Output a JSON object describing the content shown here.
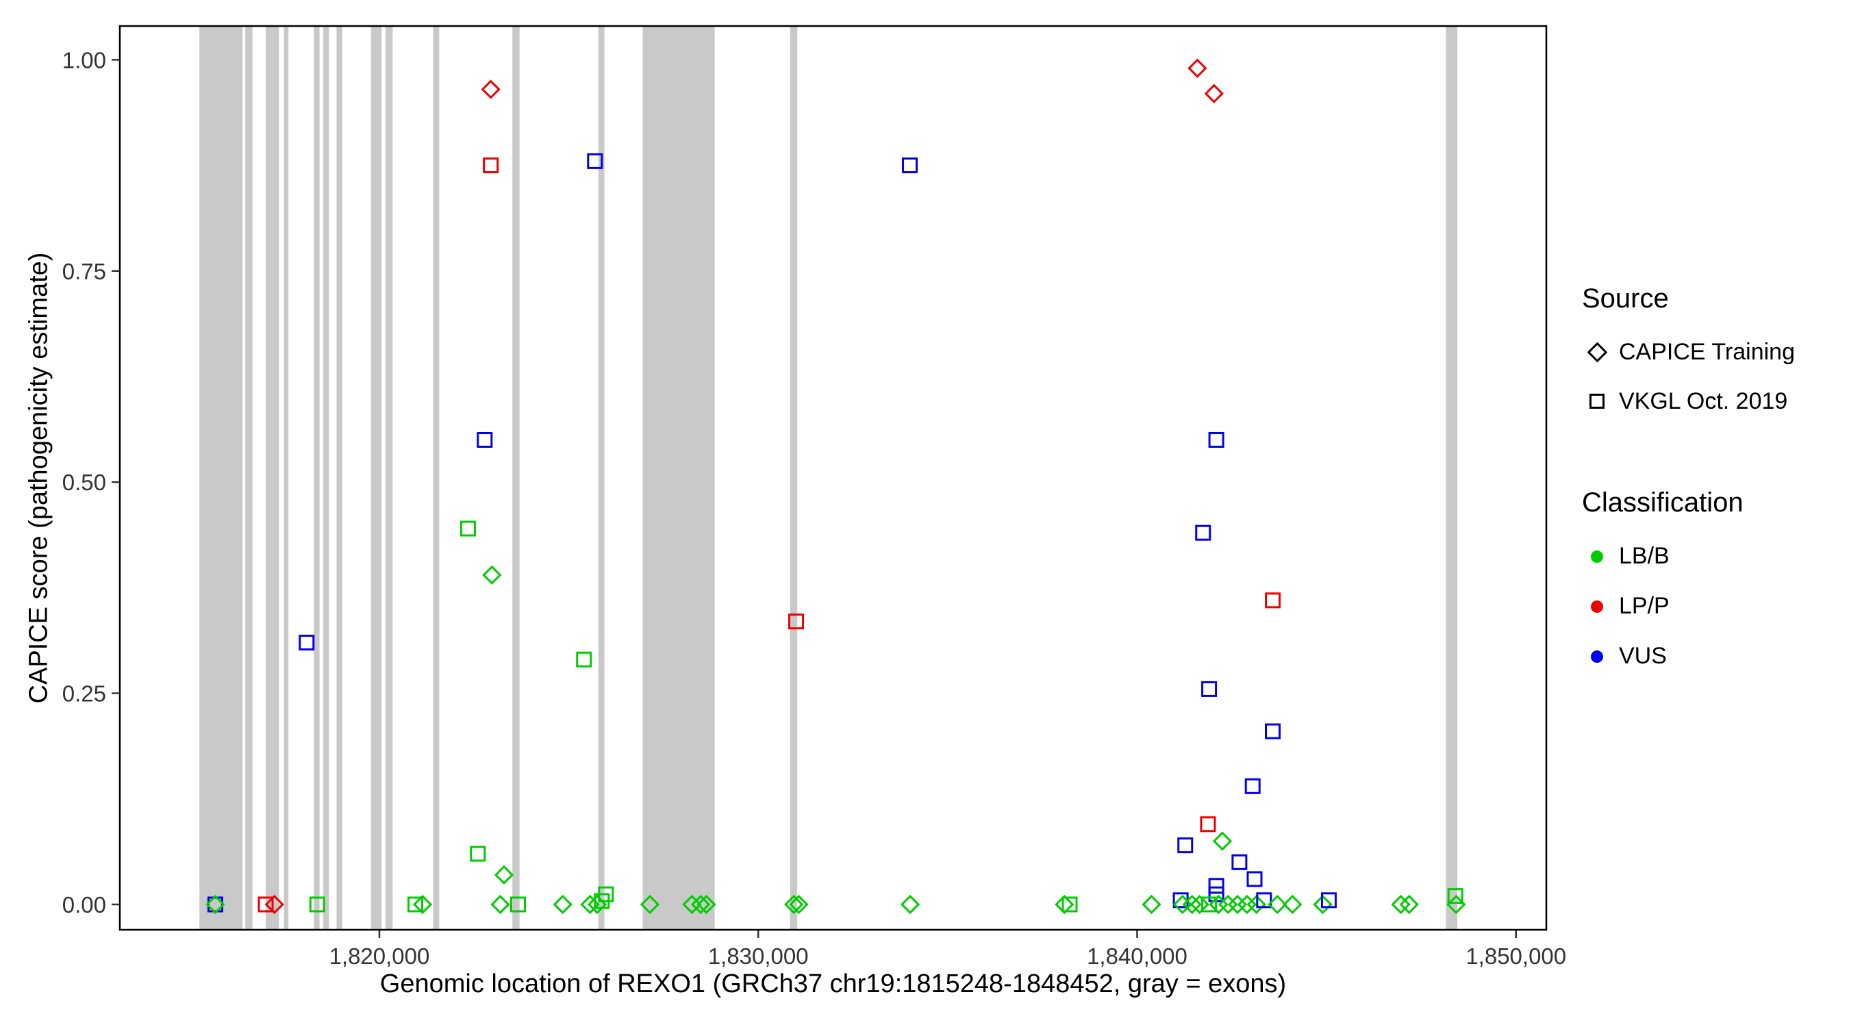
{
  "colors": {
    "LB/B": "#00CC00",
    "LP/P": "#EE0000",
    "VUS": "#0000EE",
    "exon": "#C9C9C9",
    "axis": "#333333",
    "panel_border": "#000000"
  },
  "legend": {
    "source": {
      "title": "Source",
      "items": [
        {
          "label": "CAPICE Training",
          "symbol": "diamond"
        },
        {
          "label": "VKGL Oct. 2019",
          "symbol": "square"
        }
      ]
    },
    "classification": {
      "title": "Classification",
      "items": [
        {
          "label": "LB/B",
          "color_key": "LB/B"
        },
        {
          "label": "LP/P",
          "color_key": "LP/P"
        },
        {
          "label": "VUS",
          "color_key": "VUS"
        }
      ]
    }
  },
  "chart_data": {
    "type": "scatter",
    "title": "",
    "xlabel": "Genomic location of REXO1 (GRCh37 chr19:1815248-1848452, gray = exons)",
    "ylabel": "CAPICE score (pathogenicity estimate)",
    "xlim": [
      1813150,
      1850800
    ],
    "ylim": [
      -0.03,
      1.04
    ],
    "grid": false,
    "legend_position": "right",
    "x_ticks": [
      {
        "value": 1820000,
        "label": "1,820,000"
      },
      {
        "value": 1830000,
        "label": "1,830,000"
      },
      {
        "value": 1840000,
        "label": "1,840,000"
      },
      {
        "value": 1850000,
        "label": "1,850,000"
      }
    ],
    "y_ticks": [
      {
        "value": 0.0,
        "label": "0.00"
      },
      {
        "value": 0.25,
        "label": "0.25"
      },
      {
        "value": 0.5,
        "label": "0.50"
      },
      {
        "value": 0.75,
        "label": "0.75"
      },
      {
        "value": 1.0,
        "label": "1.00"
      }
    ],
    "exons": [
      [
        1815250,
        1816390
      ],
      [
        1816460,
        1816650
      ],
      [
        1817000,
        1817350
      ],
      [
        1817480,
        1817600
      ],
      [
        1818270,
        1818420
      ],
      [
        1818520,
        1818670
      ],
      [
        1818870,
        1819020
      ],
      [
        1819780,
        1820060
      ],
      [
        1820160,
        1820350
      ],
      [
        1821420,
        1821580
      ],
      [
        1823510,
        1823700
      ],
      [
        1825780,
        1825940
      ],
      [
        1826950,
        1828850
      ],
      [
        1830840,
        1831030
      ],
      [
        1848150,
        1848452
      ]
    ],
    "points": [
      {
        "x": 1822940,
        "y": 0.965,
        "source": "training",
        "cls": "LP/P"
      },
      {
        "x": 1841590,
        "y": 0.99,
        "source": "training",
        "cls": "LP/P"
      },
      {
        "x": 1842030,
        "y": 0.96,
        "source": "training",
        "cls": "LP/P"
      },
      {
        "x": 1822940,
        "y": 0.875,
        "source": "vkgl",
        "cls": "LP/P"
      },
      {
        "x": 1825690,
        "y": 0.88,
        "source": "vkgl",
        "cls": "VUS"
      },
      {
        "x": 1834000,
        "y": 0.875,
        "source": "vkgl",
        "cls": "VUS"
      },
      {
        "x": 1822780,
        "y": 0.55,
        "source": "vkgl",
        "cls": "VUS"
      },
      {
        "x": 1842090,
        "y": 0.55,
        "source": "vkgl",
        "cls": "VUS"
      },
      {
        "x": 1822340,
        "y": 0.445,
        "source": "vkgl",
        "cls": "LB/B"
      },
      {
        "x": 1841740,
        "y": 0.44,
        "source": "vkgl",
        "cls": "VUS"
      },
      {
        "x": 1822970,
        "y": 0.39,
        "source": "training",
        "cls": "LB/B"
      },
      {
        "x": 1843580,
        "y": 0.36,
        "source": "vkgl",
        "cls": "LP/P"
      },
      {
        "x": 1831000,
        "y": 0.335,
        "source": "vkgl",
        "cls": "LP/P"
      },
      {
        "x": 1818080,
        "y": 0.31,
        "source": "vkgl",
        "cls": "VUS"
      },
      {
        "x": 1825400,
        "y": 0.29,
        "source": "vkgl",
        "cls": "LB/B"
      },
      {
        "x": 1841900,
        "y": 0.255,
        "source": "vkgl",
        "cls": "VUS"
      },
      {
        "x": 1843580,
        "y": 0.205,
        "source": "vkgl",
        "cls": "VUS"
      },
      {
        "x": 1843050,
        "y": 0.14,
        "source": "vkgl",
        "cls": "VUS"
      },
      {
        "x": 1841870,
        "y": 0.095,
        "source": "vkgl",
        "cls": "LP/P"
      },
      {
        "x": 1842250,
        "y": 0.075,
        "source": "training",
        "cls": "LB/B"
      },
      {
        "x": 1841270,
        "y": 0.07,
        "source": "vkgl",
        "cls": "VUS"
      },
      {
        "x": 1822600,
        "y": 0.06,
        "source": "vkgl",
        "cls": "LB/B"
      },
      {
        "x": 1842700,
        "y": 0.05,
        "source": "vkgl",
        "cls": "VUS"
      },
      {
        "x": 1823290,
        "y": 0.035,
        "source": "training",
        "cls": "LB/B"
      },
      {
        "x": 1843100,
        "y": 0.03,
        "source": "vkgl",
        "cls": "VUS"
      },
      {
        "x": 1842090,
        "y": 0.022,
        "source": "vkgl",
        "cls": "VUS"
      },
      {
        "x": 1842090,
        "y": 0.012,
        "source": "vkgl",
        "cls": "VUS"
      },
      {
        "x": 1825980,
        "y": 0.012,
        "source": "vkgl",
        "cls": "LB/B"
      },
      {
        "x": 1825870,
        "y": 0.004,
        "source": "vkgl",
        "cls": "LB/B"
      },
      {
        "x": 1815670,
        "y": 0.0,
        "source": "vkgl",
        "cls": "VUS"
      },
      {
        "x": 1815670,
        "y": 0.0,
        "source": "training",
        "cls": "LB/B"
      },
      {
        "x": 1817000,
        "y": 0.0,
        "source": "vkgl",
        "cls": "LP/P"
      },
      {
        "x": 1817230,
        "y": 0.0,
        "source": "training",
        "cls": "LP/P"
      },
      {
        "x": 1818360,
        "y": 0.0,
        "source": "vkgl",
        "cls": "LB/B"
      },
      {
        "x": 1820950,
        "y": 0.0,
        "source": "vkgl",
        "cls": "LB/B"
      },
      {
        "x": 1821140,
        "y": 0.0,
        "source": "training",
        "cls": "LB/B"
      },
      {
        "x": 1823190,
        "y": 0.0,
        "source": "training",
        "cls": "LB/B"
      },
      {
        "x": 1823660,
        "y": 0.0,
        "source": "vkgl",
        "cls": "LB/B"
      },
      {
        "x": 1824840,
        "y": 0.0,
        "source": "training",
        "cls": "LB/B"
      },
      {
        "x": 1825560,
        "y": 0.0,
        "source": "training",
        "cls": "LB/B"
      },
      {
        "x": 1825750,
        "y": 0.0,
        "source": "training",
        "cls": "LB/B"
      },
      {
        "x": 1827140,
        "y": 0.0,
        "source": "training",
        "cls": "LB/B"
      },
      {
        "x": 1828250,
        "y": 0.0,
        "source": "training",
        "cls": "LB/B"
      },
      {
        "x": 1828480,
        "y": 0.0,
        "source": "training",
        "cls": "LB/B"
      },
      {
        "x": 1828630,
        "y": 0.0,
        "source": "training",
        "cls": "LB/B"
      },
      {
        "x": 1830940,
        "y": 0.0,
        "source": "training",
        "cls": "LB/B"
      },
      {
        "x": 1831070,
        "y": 0.0,
        "source": "training",
        "cls": "LB/B"
      },
      {
        "x": 1834010,
        "y": 0.0,
        "source": "training",
        "cls": "LB/B"
      },
      {
        "x": 1838080,
        "y": 0.0,
        "source": "training",
        "cls": "LB/B"
      },
      {
        "x": 1838220,
        "y": 0.0,
        "source": "vkgl",
        "cls": "LB/B"
      },
      {
        "x": 1840380,
        "y": 0.0,
        "source": "training",
        "cls": "LB/B"
      },
      {
        "x": 1841150,
        "y": 0.005,
        "source": "vkgl",
        "cls": "VUS"
      },
      {
        "x": 1841200,
        "y": 0.0,
        "source": "training",
        "cls": "LB/B"
      },
      {
        "x": 1841450,
        "y": 0.0,
        "source": "training",
        "cls": "LB/B"
      },
      {
        "x": 1841650,
        "y": 0.0,
        "source": "training",
        "cls": "LB/B"
      },
      {
        "x": 1841900,
        "y": 0.0,
        "source": "vkgl",
        "cls": "LB/B"
      },
      {
        "x": 1842150,
        "y": 0.0,
        "source": "training",
        "cls": "LB/B"
      },
      {
        "x": 1842400,
        "y": 0.0,
        "source": "training",
        "cls": "LB/B"
      },
      {
        "x": 1842650,
        "y": 0.0,
        "source": "training",
        "cls": "LB/B"
      },
      {
        "x": 1842900,
        "y": 0.0,
        "source": "training",
        "cls": "LB/B"
      },
      {
        "x": 1843150,
        "y": 0.0,
        "source": "training",
        "cls": "LB/B"
      },
      {
        "x": 1843350,
        "y": 0.005,
        "source": "vkgl",
        "cls": "VUS"
      },
      {
        "x": 1843700,
        "y": 0.0,
        "source": "training",
        "cls": "LB/B"
      },
      {
        "x": 1844100,
        "y": 0.0,
        "source": "training",
        "cls": "LB/B"
      },
      {
        "x": 1844900,
        "y": 0.0,
        "source": "training",
        "cls": "LB/B"
      },
      {
        "x": 1845060,
        "y": 0.005,
        "source": "vkgl",
        "cls": "VUS"
      },
      {
        "x": 1846960,
        "y": 0.0,
        "source": "training",
        "cls": "LB/B"
      },
      {
        "x": 1847180,
        "y": 0.0,
        "source": "training",
        "cls": "LB/B"
      },
      {
        "x": 1848400,
        "y": 0.01,
        "source": "vkgl",
        "cls": "LB/B"
      },
      {
        "x": 1848420,
        "y": 0.0,
        "source": "training",
        "cls": "LB/B"
      }
    ]
  }
}
